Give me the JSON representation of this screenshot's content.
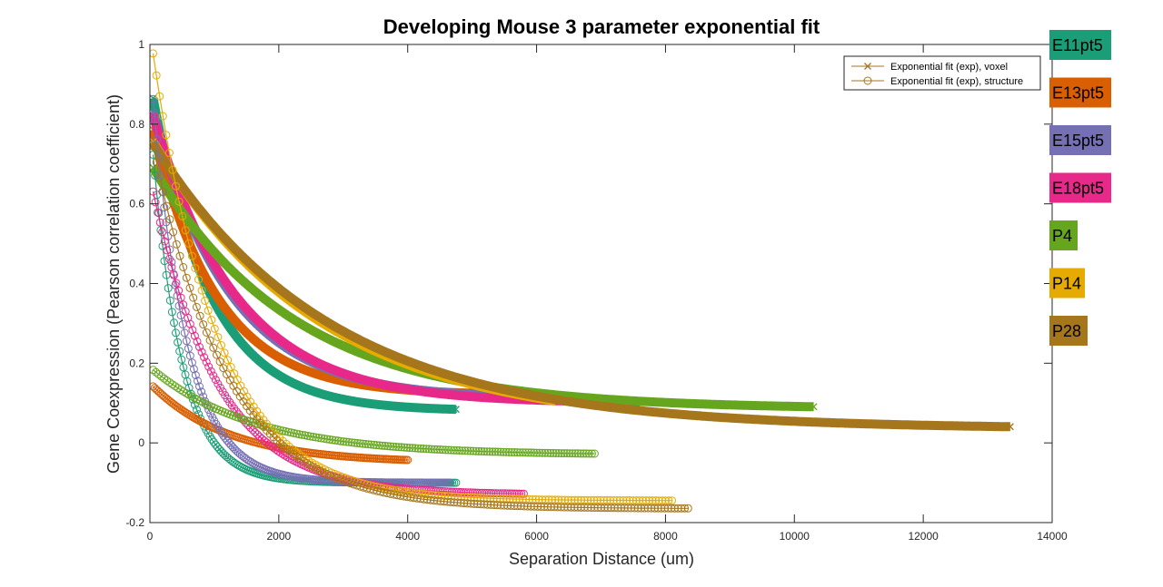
{
  "chart_data": {
    "type": "line",
    "title": "Developing Mouse 3 parameter exponential fit",
    "xlabel": "Separation Distance (um)",
    "ylabel": "Gene Coexpression (Pearson correlation coefficient)",
    "xlim": [
      0,
      14000
    ],
    "ylim": [
      -0.2,
      1
    ],
    "xticks": [
      0,
      2000,
      4000,
      6000,
      8000,
      10000,
      12000,
      14000
    ],
    "yticks": [
      -0.2,
      0,
      0.2,
      0.4,
      0.6,
      0.8,
      1
    ],
    "grid": false,
    "legend": {
      "position": "top-right",
      "entries": [
        {
          "label": "Exponential fit (exp), voxel",
          "marker": "x"
        },
        {
          "label": "Exponential fit (exp), structure",
          "marker": "o"
        }
      ]
    },
    "series": [
      {
        "name": "E11pt5",
        "color": "#1b9e77",
        "voxel": {
          "x_start": 50,
          "x_end": 4750,
          "a": 0.83,
          "b": 900,
          "c": 0.08
        },
        "structure": {
          "x_start": 50,
          "x_end": 4750,
          "a": 0.92,
          "b": 450,
          "c": -0.1
        }
      },
      {
        "name": "E13pt5",
        "color": "#d95f02",
        "voxel": {
          "x_start": 50,
          "x_end": 5050,
          "a": 0.7,
          "b": 1000,
          "c": 0.12
        },
        "structure": {
          "x_start": 50,
          "x_end": 4000,
          "a": 0.2,
          "b": 1200,
          "c": -0.05
        }
      },
      {
        "name": "E15pt5",
        "color": "#7570b3",
        "voxel": {
          "x_start": 50,
          "x_end": 6350,
          "a": 0.75,
          "b": 1200,
          "c": 0.11
        },
        "structure": {
          "x_start": 50,
          "x_end": 4650,
          "a": 1.06,
          "b": 520,
          "c": -0.1
        }
      },
      {
        "name": "E18pt5",
        "color": "#e7298a",
        "voxel": {
          "x_start": 50,
          "x_end": 7600,
          "a": 0.75,
          "b": 1300,
          "c": 0.1
        },
        "structure": {
          "x_start": 50,
          "x_end": 5800,
          "a": 0.8,
          "b": 1000,
          "c": -0.13
        }
      },
      {
        "name": "P4",
        "color": "#66a61e",
        "voxel": {
          "x_start": 50,
          "x_end": 10300,
          "a": 0.62,
          "b": 2200,
          "c": 0.085
        },
        "structure": {
          "x_start": 50,
          "x_end": 6900,
          "a": 0.22,
          "b": 1600,
          "c": -0.03
        }
      },
      {
        "name": "P14",
        "color": "#e6ab02",
        "voxel": {
          "x_start": 50,
          "x_end": 6300,
          "a": 0.73,
          "b": 2600,
          "c": 0.04
        },
        "structure": {
          "x_start": 50,
          "x_end": 8100,
          "a": 1.18,
          "b": 1000,
          "c": -0.145
        }
      },
      {
        "name": "P28",
        "color": "#a6761d",
        "voxel": {
          "x_start": 50,
          "x_end": 13350,
          "a": 0.73,
          "b": 2750,
          "c": 0.035
        },
        "structure": {
          "x_start": 50,
          "x_end": 8350,
          "a": 0.95,
          "b": 1150,
          "c": -0.165
        }
      }
    ]
  }
}
